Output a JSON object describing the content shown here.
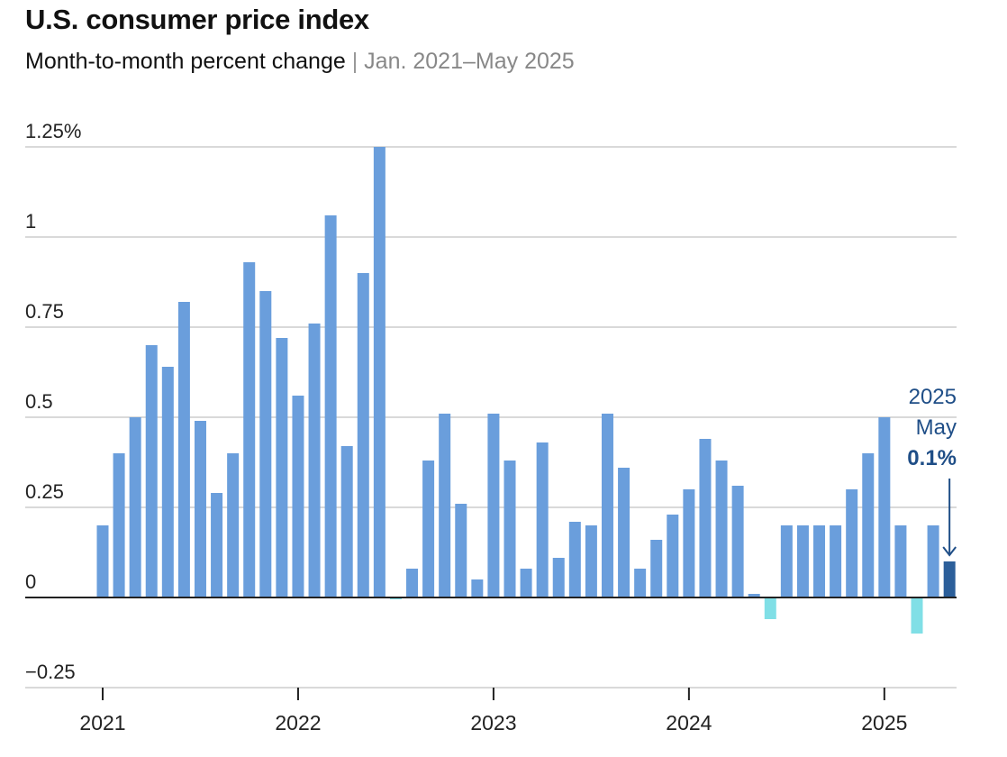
{
  "header": {
    "title": "U.S. consumer price index",
    "subtitle_main": "Month-to-month percent change",
    "subtitle_sep": "|",
    "subtitle_range": "Jan. 2021–May 2025"
  },
  "chart_data": {
    "type": "bar",
    "title": "U.S. consumer price index",
    "subtitle": "Month-to-month percent change | Jan. 2021–May 2025",
    "xlabel": "",
    "ylabel": "",
    "ylim": [
      -0.25,
      1.25
    ],
    "grid": true,
    "y_ticks": [
      {
        "value": 1.25,
        "label": "1.25%"
      },
      {
        "value": 1,
        "label": "1"
      },
      {
        "value": 0.75,
        "label": "0.75"
      },
      {
        "value": 0.5,
        "label": "0.5"
      },
      {
        "value": 0.25,
        "label": "0.25"
      },
      {
        "value": 0,
        "label": "0"
      },
      {
        "value": -0.25,
        "label": "−0.25"
      }
    ],
    "x_ticks": [
      {
        "index": 0,
        "label": "2021"
      },
      {
        "index": 12,
        "label": "2022"
      },
      {
        "index": 24,
        "label": "2023"
      },
      {
        "index": 36,
        "label": "2024"
      },
      {
        "index": 48,
        "label": "2025"
      }
    ],
    "start": "2021-01",
    "values": [
      0.2,
      0.4,
      0.5,
      0.7,
      0.64,
      0.82,
      0.49,
      0.29,
      0.4,
      0.93,
      0.85,
      0.72,
      0.56,
      0.76,
      1.06,
      0.42,
      0.9,
      1.25,
      -0.005,
      0.08,
      0.38,
      0.51,
      0.26,
      0.05,
      0.51,
      0.38,
      0.08,
      0.43,
      0.11,
      0.21,
      0.2,
      0.51,
      0.36,
      0.08,
      0.16,
      0.23,
      0.3,
      0.44,
      0.38,
      0.31,
      0.01,
      -0.06,
      0.2,
      0.2,
      0.2,
      0.2,
      0.3,
      0.4,
      0.5,
      0.2,
      -0.1,
      0.2,
      0.1
    ],
    "colors": {
      "positive": "#6a9edc",
      "negative": "#80dfe6",
      "highlight": "#2c5f9a",
      "annotation": "#1f4e87",
      "grid": "#d9d9d9",
      "axis": "#222222"
    },
    "annotation": {
      "line1": "2025",
      "line2": "May",
      "value": "0.1%",
      "index": 52
    }
  }
}
